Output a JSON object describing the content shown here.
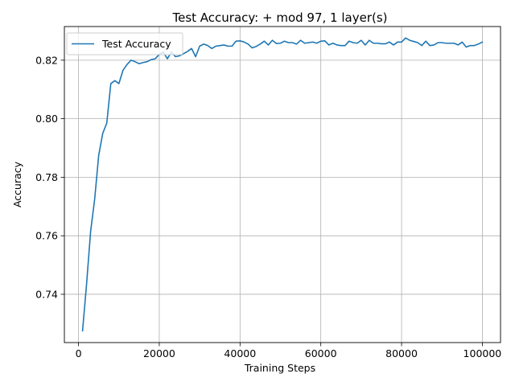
{
  "chart_data": {
    "type": "line",
    "title": "Test Accuracy: + mod 97, 1 layer(s)",
    "xlabel": "Training Steps",
    "ylabel": "Accuracy",
    "xlim": [
      -3500,
      104500
    ],
    "ylim": [
      0.7235,
      0.8315
    ],
    "xticks": [
      0,
      20000,
      40000,
      60000,
      80000,
      100000
    ],
    "yticks": [
      0.74,
      0.76,
      0.78,
      0.8,
      0.82
    ],
    "ytick_labels": [
      "0.74",
      "0.76",
      "0.78",
      "0.80",
      "0.82"
    ],
    "grid": true,
    "legend_position": "upper-left",
    "series": [
      {
        "name": "Test Accuracy",
        "color": "#1f77b4",
        "x": [
          1000,
          2000,
          3000,
          4000,
          5000,
          6000,
          7000,
          8000,
          9000,
          10000,
          11000,
          12000,
          13000,
          14000,
          15000,
          16000,
          17000,
          18000,
          19000,
          20000,
          21000,
          22000,
          23000,
          24000,
          25000,
          26000,
          27000,
          28000,
          29000,
          30000,
          31000,
          32000,
          33000,
          34000,
          35000,
          36000,
          37000,
          38000,
          39000,
          40000,
          41000,
          42000,
          43000,
          44000,
          45000,
          46000,
          47000,
          48000,
          49000,
          50000,
          51000,
          52000,
          53000,
          54000,
          55000,
          56000,
          57000,
          58000,
          59000,
          60000,
          61000,
          62000,
          63000,
          64000,
          65000,
          66000,
          67000,
          68000,
          69000,
          70000,
          71000,
          72000,
          73000,
          74000,
          75000,
          76000,
          77000,
          78000,
          79000,
          80000,
          81000,
          82000,
          83000,
          84000,
          85000,
          86000,
          87000,
          88000,
          89000,
          90000,
          91000,
          92000,
          93000,
          94000,
          95000,
          96000,
          97000,
          98000,
          99000,
          100000
        ],
        "y": [
          0.7275,
          0.7435,
          0.7615,
          0.7725,
          0.7875,
          0.795,
          0.7985,
          0.812,
          0.813,
          0.812,
          0.8165,
          0.8185,
          0.82,
          0.8195,
          0.8188,
          0.8192,
          0.8195,
          0.8202,
          0.8205,
          0.822,
          0.8228,
          0.8205,
          0.8228,
          0.8212,
          0.8215,
          0.8222,
          0.823,
          0.824,
          0.8212,
          0.8248,
          0.8255,
          0.825,
          0.824,
          0.8248,
          0.825,
          0.8252,
          0.8248,
          0.8248,
          0.8265,
          0.8266,
          0.8262,
          0.8255,
          0.8242,
          0.8247,
          0.8255,
          0.8265,
          0.8252,
          0.8268,
          0.8257,
          0.8258,
          0.8265,
          0.826,
          0.826,
          0.8255,
          0.8268,
          0.8258,
          0.826,
          0.8262,
          0.8258,
          0.8265,
          0.8266,
          0.8252,
          0.8258,
          0.8252,
          0.825,
          0.825,
          0.8265,
          0.826,
          0.8258,
          0.8268,
          0.8252,
          0.8268,
          0.8258,
          0.8258,
          0.8256,
          0.8256,
          0.8262,
          0.8252,
          0.8262,
          0.8262,
          0.8276,
          0.8268,
          0.8264,
          0.826,
          0.825,
          0.8265,
          0.825,
          0.8252,
          0.826,
          0.826,
          0.8258,
          0.8258,
          0.8258,
          0.8252,
          0.8262,
          0.8245,
          0.825,
          0.825,
          0.8255,
          0.8262
        ]
      }
    ]
  }
}
